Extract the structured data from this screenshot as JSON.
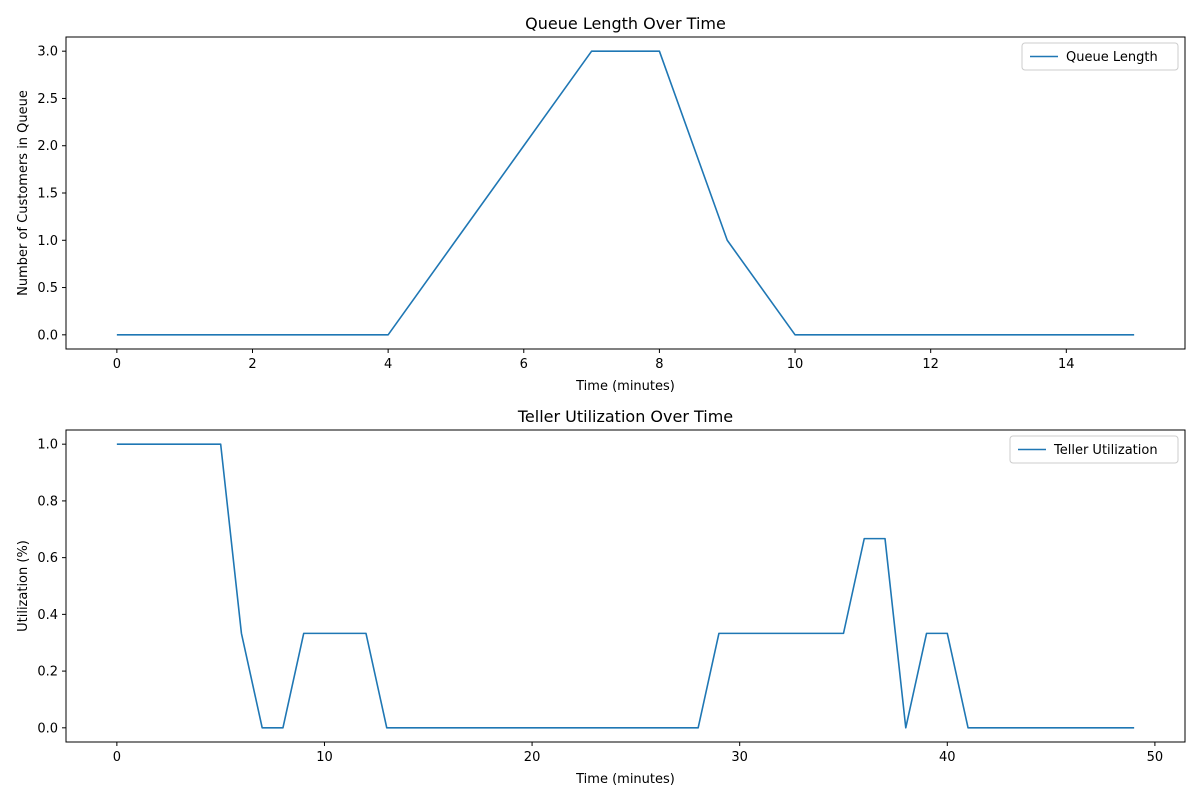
{
  "chart_data": [
    {
      "type": "line",
      "title": "Queue Length Over Time",
      "xlabel": "Time (minutes)",
      "ylabel": "Number of Customers in Queue",
      "xlim": [
        -0.75,
        15.75
      ],
      "ylim": [
        -0.15,
        3.15
      ],
      "xticks": [
        0,
        2,
        4,
        6,
        8,
        10,
        12,
        14
      ],
      "yticks": [
        0.0,
        0.5,
        1.0,
        1.5,
        2.0,
        2.5,
        3.0
      ],
      "ytick_decimals": 1,
      "grid": false,
      "legend_position": "top-right",
      "color": "#1f77b4",
      "series": [
        {
          "name": "Queue Length",
          "x": [
            0,
            1,
            2,
            3,
            4,
            5,
            6,
            7,
            8,
            9,
            10,
            11,
            12,
            13,
            14,
            15
          ],
          "y": [
            0,
            0,
            0,
            0,
            0,
            1,
            2,
            3,
            3,
            1,
            0,
            0,
            0,
            0,
            0,
            0
          ]
        }
      ]
    },
    {
      "type": "line",
      "title": "Teller Utilization Over Time",
      "xlabel": "Time (minutes)",
      "ylabel": "Utilization (%)",
      "xlim": [
        -2.45,
        51.45
      ],
      "ylim": [
        -0.05,
        1.05
      ],
      "xticks": [
        0,
        10,
        20,
        30,
        40,
        50
      ],
      "yticks": [
        0.0,
        0.2,
        0.4,
        0.6,
        0.8,
        1.0
      ],
      "ytick_decimals": 1,
      "grid": false,
      "legend_position": "top-right",
      "color": "#1f77b4",
      "series": [
        {
          "name": "Teller Utilization",
          "x": [
            0,
            1,
            2,
            3,
            4,
            5,
            6,
            7,
            8,
            9,
            10,
            11,
            12,
            13,
            14,
            15,
            16,
            17,
            18,
            19,
            20,
            21,
            22,
            23,
            24,
            25,
            26,
            27,
            28,
            29,
            30,
            31,
            32,
            33,
            34,
            35,
            36,
            37,
            38,
            39,
            40,
            41,
            42,
            43,
            44,
            45,
            46,
            47,
            48,
            49
          ],
          "y": [
            1,
            1,
            1,
            1,
            1,
            1,
            0.333,
            0,
            0,
            0.333,
            0.333,
            0.333,
            0.333,
            0,
            0,
            0,
            0,
            0,
            0,
            0,
            0,
            0,
            0,
            0,
            0,
            0,
            0,
            0,
            0,
            0.333,
            0.333,
            0.333,
            0.333,
            0.333,
            0.333,
            0.333,
            0.667,
            0.667,
            0,
            0.333,
            0.333,
            0,
            0,
            0,
            0,
            0,
            0,
            0,
            0,
            0
          ]
        }
      ]
    }
  ]
}
